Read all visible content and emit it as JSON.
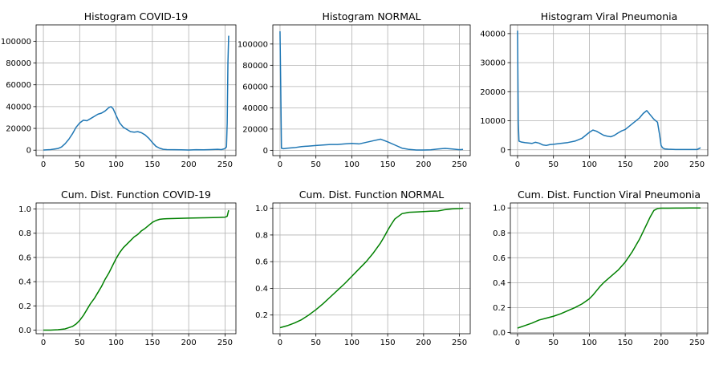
{
  "figure": {
    "background": "#ffffff",
    "grid_color": "#b0b0b0",
    "axis_color": "#000000"
  },
  "chart_data": [
    {
      "type": "line",
      "title": "Histogram COVID-19",
      "xlabel": "",
      "ylabel": "",
      "xlim": [
        -10,
        265
      ],
      "ylim": [
        -5000,
        115000
      ],
      "xticks": [
        0,
        50,
        100,
        150,
        200,
        250
      ],
      "xtick_labels": [
        "0",
        "50",
        "100",
        "150",
        "200",
        "250"
      ],
      "yticks": [
        0,
        20000,
        40000,
        60000,
        80000,
        100000
      ],
      "ytick_labels": [
        "0",
        "20000",
        "40000",
        "60000",
        "80000",
        "100000"
      ],
      "grid": true,
      "series": [
        {
          "color": "#1f77b4",
          "x": [
            0,
            10,
            20,
            25,
            30,
            35,
            40,
            45,
            50,
            55,
            60,
            65,
            70,
            75,
            80,
            85,
            90,
            93,
            96,
            100,
            105,
            110,
            115,
            120,
            125,
            130,
            135,
            140,
            145,
            150,
            155,
            160,
            165,
            170,
            180,
            190,
            200,
            210,
            220,
            230,
            240,
            245,
            250,
            252,
            253,
            254,
            255
          ],
          "y": [
            200,
            500,
            1500,
            3000,
            6000,
            10000,
            15000,
            21000,
            25000,
            27500,
            27000,
            29000,
            31000,
            33000,
            34000,
            36000,
            39000,
            40000,
            38000,
            32000,
            25000,
            21000,
            19000,
            17000,
            16500,
            17000,
            16000,
            14000,
            11000,
            7000,
            3500,
            1800,
            800,
            500,
            400,
            300,
            200,
            400,
            300,
            500,
            800,
            500,
            1500,
            3000,
            25000,
            80000,
            105000
          ]
        }
      ]
    },
    {
      "type": "line",
      "title": "Histogram NORMAL",
      "xlabel": "",
      "ylabel": "",
      "xlim": [
        -10,
        265
      ],
      "ylim": [
        -5000,
        118000
      ],
      "xticks": [
        0,
        50,
        100,
        150,
        200,
        250
      ],
      "xtick_labels": [
        "0",
        "50",
        "100",
        "150",
        "200",
        "250"
      ],
      "yticks": [
        0,
        20000,
        40000,
        60000,
        80000,
        100000
      ],
      "ytick_labels": [
        "0",
        "20000",
        "40000",
        "60000",
        "80000",
        "100000"
      ],
      "grid": true,
      "series": [
        {
          "color": "#1f77b4",
          "x": [
            0,
            1,
            2,
            5,
            10,
            20,
            30,
            40,
            50,
            60,
            70,
            80,
            90,
            100,
            110,
            120,
            130,
            140,
            150,
            160,
            170,
            180,
            190,
            200,
            210,
            220,
            230,
            240,
            250,
            255
          ],
          "y": [
            112000,
            60000,
            2000,
            1500,
            2000,
            2500,
            3500,
            4000,
            4500,
            5000,
            5500,
            5500,
            6000,
            6500,
            6000,
            7500,
            9000,
            10500,
            8000,
            5000,
            2000,
            800,
            300,
            300,
            500,
            1200,
            1800,
            1200,
            600,
            800
          ]
        }
      ]
    },
    {
      "type": "line",
      "title": "Histogram Viral Pneumonia",
      "xlabel": "",
      "ylabel": "",
      "xlim": [
        -10,
        265
      ],
      "ylim": [
        -2000,
        43000
      ],
      "xticks": [
        0,
        50,
        100,
        150,
        200,
        250
      ],
      "xtick_labels": [
        "0",
        "50",
        "100",
        "150",
        "200",
        "250"
      ],
      "yticks": [
        0,
        10000,
        20000,
        30000,
        40000
      ],
      "ytick_labels": [
        "0",
        "10000",
        "20000",
        "30000",
        "40000"
      ],
      "grid": true,
      "series": [
        {
          "color": "#1f77b4",
          "x": [
            0,
            1,
            2,
            5,
            10,
            20,
            25,
            30,
            35,
            40,
            45,
            50,
            60,
            70,
            80,
            90,
            100,
            105,
            110,
            115,
            120,
            125,
            130,
            135,
            140,
            145,
            150,
            155,
            160,
            165,
            170,
            175,
            180,
            185,
            190,
            195,
            198,
            200,
            202,
            205,
            210,
            220,
            230,
            240,
            250,
            255
          ],
          "y": [
            41000,
            10000,
            3000,
            2700,
            2500,
            2200,
            2600,
            2300,
            1700,
            1500,
            1800,
            1900,
            2200,
            2500,
            3000,
            4000,
            6000,
            6800,
            6400,
            5700,
            5000,
            4700,
            4500,
            5000,
            5800,
            6500,
            7000,
            8000,
            9000,
            10000,
            11000,
            12500,
            13500,
            12000,
            10500,
            9500,
            5000,
            1500,
            700,
            300,
            200,
            100,
            100,
            100,
            100,
            700
          ]
        }
      ]
    },
    {
      "type": "line",
      "title": "Cum. Dist. Function COVID-19",
      "xlabel": "",
      "ylabel": "",
      "xlim": [
        -10,
        265
      ],
      "ylim": [
        -0.03,
        1.05
      ],
      "xticks": [
        0,
        50,
        100,
        150,
        200,
        250
      ],
      "xtick_labels": [
        "0",
        "50",
        "100",
        "150",
        "200",
        "250"
      ],
      "yticks": [
        0.0,
        0.2,
        0.4,
        0.6,
        0.8,
        1.0
      ],
      "ytick_labels": [
        "0.0",
        "0.2",
        "0.4",
        "0.6",
        "0.8",
        "1.0"
      ],
      "grid": true,
      "series": [
        {
          "color": "#008000",
          "x": [
            0,
            10,
            20,
            30,
            40,
            45,
            50,
            55,
            60,
            65,
            70,
            75,
            80,
            85,
            90,
            95,
            100,
            105,
            110,
            115,
            120,
            125,
            130,
            135,
            140,
            145,
            150,
            155,
            160,
            165,
            170,
            180,
            200,
            220,
            240,
            250,
            253,
            255
          ],
          "y": [
            0.0,
            0.0,
            0.003,
            0.01,
            0.03,
            0.05,
            0.08,
            0.12,
            0.17,
            0.22,
            0.26,
            0.31,
            0.36,
            0.42,
            0.47,
            0.53,
            0.59,
            0.64,
            0.68,
            0.71,
            0.74,
            0.77,
            0.79,
            0.82,
            0.84,
            0.865,
            0.89,
            0.905,
            0.915,
            0.918,
            0.92,
            0.922,
            0.925,
            0.927,
            0.93,
            0.932,
            0.94,
            0.99
          ]
        }
      ]
    },
    {
      "type": "line",
      "title": "Cum. Dist. Function NORMAL",
      "xlabel": "",
      "ylabel": "",
      "xlim": [
        -10,
        265
      ],
      "ylim": [
        0.06,
        1.04
      ],
      "xticks": [
        0,
        50,
        100,
        150,
        200,
        250
      ],
      "xtick_labels": [
        "0",
        "50",
        "100",
        "150",
        "200",
        "250"
      ],
      "yticks": [
        0.2,
        0.4,
        0.6,
        0.8,
        1.0
      ],
      "ytick_labels": [
        "0.2",
        "0.4",
        "0.6",
        "0.8",
        "1.0"
      ],
      "grid": true,
      "series": [
        {
          "color": "#008000",
          "x": [
            0,
            10,
            20,
            30,
            40,
            50,
            60,
            70,
            80,
            90,
            100,
            110,
            120,
            130,
            140,
            145,
            150,
            155,
            160,
            170,
            180,
            190,
            200,
            210,
            220,
            230,
            240,
            250,
            255
          ],
          "y": [
            0.105,
            0.12,
            0.14,
            0.165,
            0.2,
            0.24,
            0.285,
            0.335,
            0.385,
            0.435,
            0.49,
            0.545,
            0.6,
            0.665,
            0.74,
            0.785,
            0.835,
            0.88,
            0.92,
            0.96,
            0.97,
            0.972,
            0.975,
            0.978,
            0.98,
            0.99,
            0.996,
            0.998,
            1.0
          ]
        }
      ]
    },
    {
      "type": "line",
      "title": "Cum. Dist. Function Viral Pneumonia",
      "xlabel": "",
      "ylabel": "",
      "xlim": [
        -10,
        265
      ],
      "ylim": [
        -0.01,
        1.04
      ],
      "xticks": [
        0,
        50,
        100,
        150,
        200,
        250
      ],
      "xtick_labels": [
        "0",
        "50",
        "100",
        "150",
        "200",
        "250"
      ],
      "yticks": [
        0.0,
        0.2,
        0.4,
        0.6,
        0.8,
        1.0
      ],
      "ytick_labels": [
        "0.0",
        "0.2",
        "0.4",
        "0.6",
        "0.8",
        "1.0"
      ],
      "grid": true,
      "series": [
        {
          "color": "#008000",
          "x": [
            0,
            10,
            20,
            30,
            40,
            50,
            60,
            70,
            80,
            90,
            100,
            105,
            110,
            115,
            120,
            125,
            130,
            140,
            150,
            160,
            170,
            180,
            185,
            190,
            195,
            198,
            200,
            210,
            220,
            230,
            240,
            250,
            255
          ],
          "y": [
            0.035,
            0.055,
            0.075,
            0.1,
            0.115,
            0.13,
            0.15,
            0.175,
            0.2,
            0.23,
            0.27,
            0.3,
            0.335,
            0.37,
            0.4,
            0.425,
            0.45,
            0.5,
            0.565,
            0.65,
            0.75,
            0.87,
            0.93,
            0.98,
            0.995,
            0.997,
            0.998,
            0.998,
            0.999,
            0.999,
            1.0,
            1.0,
            1.0
          ]
        }
      ]
    }
  ]
}
